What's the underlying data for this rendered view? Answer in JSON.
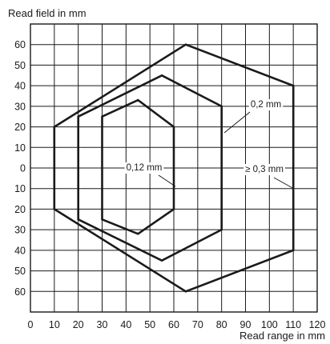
{
  "chart_data": {
    "type": "line",
    "xlabel": "Read range in mm",
    "ylabel": "Read field in mm",
    "xlim": [
      0,
      120
    ],
    "ylim": [
      -70,
      70
    ],
    "grid": true,
    "x_ticks": [
      0,
      10,
      20,
      30,
      40,
      50,
      60,
      70,
      80,
      90,
      100,
      110,
      120
    ],
    "y_ticks": [
      60,
      50,
      40,
      30,
      20,
      10,
      0,
      -10,
      -20,
      -30,
      -40,
      -50,
      -60
    ],
    "y_tick_labels": [
      "60",
      "50",
      "40",
      "30",
      "20",
      "10",
      "0",
      "10",
      "20",
      "30",
      "40",
      "50",
      "60"
    ],
    "series": [
      {
        "name": "≥ 0,3 mm",
        "points": [
          [
            10,
            20
          ],
          [
            65,
            60
          ],
          [
            110,
            40
          ],
          [
            110,
            -40
          ],
          [
            65,
            -60
          ],
          [
            10,
            -20
          ]
        ]
      },
      {
        "name": "0,2 mm",
        "points": [
          [
            20,
            25
          ],
          [
            55,
            45
          ],
          [
            80,
            30
          ],
          [
            80,
            -30
          ],
          [
            55,
            -45
          ],
          [
            20,
            -25
          ]
        ]
      },
      {
        "name": "0,12 mm",
        "points": [
          [
            30,
            25
          ],
          [
            45,
            33
          ],
          [
            60,
            20
          ],
          [
            60,
            -20
          ],
          [
            45,
            -32
          ],
          [
            30,
            -25
          ]
        ]
      }
    ],
    "annotations": [
      {
        "text": "0,2 mm",
        "target": [
          80,
          10
        ]
      },
      {
        "text": "≥ 0,3 mm",
        "target": [
          110,
          -10
        ]
      },
      {
        "text": "0,12 mm",
        "target": [
          60,
          -10
        ]
      }
    ]
  }
}
